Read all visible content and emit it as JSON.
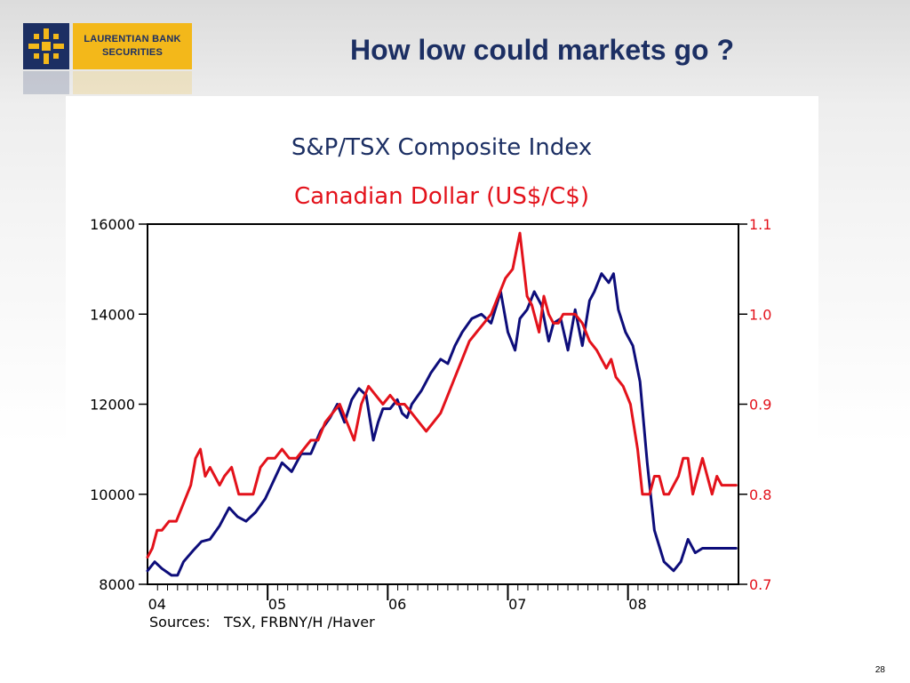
{
  "logo": {
    "line1": "LAURENTIAN BANK",
    "line2": "SECURITIES"
  },
  "slide": {
    "title": "How low could markets go ?",
    "page_number": "28"
  },
  "chart_data": {
    "type": "line",
    "title": "S&P/TSX Composite Index",
    "subtitle": "Canadian Dollar (US$/C$)",
    "x_ticks": [
      "04",
      "05",
      "06",
      "07",
      "08"
    ],
    "x_range": [
      2004.0,
      2008.92
    ],
    "grid": false,
    "left_axis": {
      "ylim": [
        8000,
        16000
      ],
      "ticks": [
        "16000",
        "14000",
        "12000",
        "10000",
        "8000"
      ]
    },
    "right_axis": {
      "ylim": [
        0.7,
        1.1
      ],
      "ticks": [
        "1.1",
        "1.0",
        "0.9",
        "0.8",
        "0.7"
      ]
    },
    "colors": {
      "tsx": "#0d0d7a",
      "cad": "#e3121b",
      "title": "#1c2f63",
      "subtitle": "#e3121b",
      "right_axis_text": "#e3121b"
    },
    "series": [
      {
        "axis": "left",
        "x": [
          2004.0,
          2004.06,
          2004.12,
          2004.2,
          2004.25,
          2004.3,
          2004.38,
          2004.45,
          2004.52,
          2004.6,
          2004.68,
          2004.75,
          2004.82,
          2004.9,
          2004.98,
          2005.05,
          2005.12,
          2005.2,
          2005.28,
          2005.36,
          2005.44,
          2005.52,
          2005.58,
          2005.64,
          2005.7,
          2005.76,
          2005.82,
          2005.88,
          2005.92,
          2005.96,
          2006.02,
          2006.08,
          2006.12,
          2006.16,
          2006.2,
          2006.28,
          2006.36,
          2006.44,
          2006.5,
          2006.56,
          2006.62,
          2006.7,
          2006.78,
          2006.86,
          2006.94,
          2007.0,
          2007.06,
          2007.1,
          2007.16,
          2007.22,
          2007.28,
          2007.34,
          2007.38,
          2007.44,
          2007.5,
          2007.56,
          2007.62,
          2007.68,
          2007.72,
          2007.78,
          2007.84,
          2007.88,
          2007.92,
          2007.98,
          2008.04,
          2008.1,
          2008.16,
          2008.22,
          2008.3,
          2008.38,
          2008.44,
          2008.5,
          2008.56,
          2008.62,
          2008.68,
          2008.74,
          2008.8,
          2008.86,
          2008.9
        ],
        "values": [
          8300,
          8500,
          8350,
          8200,
          8200,
          8500,
          8750,
          8950,
          9000,
          9300,
          9700,
          9500,
          9400,
          9600,
          9900,
          10300,
          10700,
          10500,
          10900,
          10900,
          11400,
          11700,
          12000,
          11600,
          12100,
          12350,
          12200,
          11200,
          11600,
          11900,
          11900,
          12100,
          11800,
          11700,
          12000,
          12300,
          12700,
          13000,
          12900,
          13300,
          13600,
          13900,
          14000,
          13800,
          14500,
          13600,
          13200,
          13900,
          14100,
          14500,
          14200,
          13400,
          13800,
          13900,
          13200,
          14100,
          13300,
          14300,
          14500,
          14900,
          14700,
          14900,
          14100,
          13600,
          13300,
          12500,
          10700,
          9200,
          8500,
          8300,
          8500,
          9000,
          8700,
          8800,
          8800,
          8800,
          8800,
          8800,
          8800
        ]
      },
      {
        "axis": "right",
        "x": [
          2004.0,
          2004.04,
          2004.08,
          2004.12,
          2004.18,
          2004.24,
          2004.3,
          2004.36,
          2004.4,
          2004.44,
          2004.48,
          2004.52,
          2004.56,
          2004.6,
          2004.64,
          2004.7,
          2004.76,
          2004.82,
          2004.88,
          2004.94,
          2005.0,
          2005.06,
          2005.12,
          2005.18,
          2005.24,
          2005.3,
          2005.36,
          2005.42,
          2005.48,
          2005.54,
          2005.6,
          2005.66,
          2005.72,
          2005.78,
          2005.84,
          2005.9,
          2005.96,
          2006.02,
          2006.08,
          2006.14,
          2006.2,
          2006.26,
          2006.32,
          2006.38,
          2006.44,
          2006.5,
          2006.56,
          2006.62,
          2006.68,
          2006.74,
          2006.8,
          2006.86,
          2006.92,
          2006.98,
          2007.04,
          2007.1,
          2007.16,
          2007.2,
          2007.26,
          2007.3,
          2007.34,
          2007.38,
          2007.42,
          2007.46,
          2007.5,
          2007.56,
          2007.62,
          2007.68,
          2007.74,
          2007.78,
          2007.82,
          2007.86,
          2007.9,
          2007.96,
          2008.02,
          2008.08,
          2008.12,
          2008.18,
          2008.22,
          2008.26,
          2008.3,
          2008.34,
          2008.38,
          2008.42,
          2008.46,
          2008.5,
          2008.54,
          2008.58,
          2008.62,
          2008.66,
          2008.7,
          2008.74,
          2008.78,
          2008.82,
          2008.86,
          2008.9
        ],
        "values": [
          0.73,
          0.74,
          0.76,
          0.76,
          0.77,
          0.77,
          0.79,
          0.81,
          0.84,
          0.85,
          0.82,
          0.83,
          0.82,
          0.81,
          0.82,
          0.83,
          0.8,
          0.8,
          0.8,
          0.83,
          0.84,
          0.84,
          0.85,
          0.84,
          0.84,
          0.85,
          0.86,
          0.86,
          0.88,
          0.89,
          0.9,
          0.88,
          0.86,
          0.9,
          0.92,
          0.91,
          0.9,
          0.91,
          0.9,
          0.9,
          0.89,
          0.88,
          0.87,
          0.88,
          0.89,
          0.91,
          0.93,
          0.95,
          0.97,
          0.98,
          0.99,
          1.0,
          1.02,
          1.04,
          1.05,
          1.09,
          1.02,
          1.01,
          0.98,
          1.02,
          1.0,
          0.99,
          0.99,
          1.0,
          1.0,
          1.0,
          0.99,
          0.97,
          0.96,
          0.95,
          0.94,
          0.95,
          0.93,
          0.92,
          0.9,
          0.85,
          0.8,
          0.8,
          0.82,
          0.82,
          0.8,
          0.8,
          0.81,
          0.82,
          0.84,
          0.84,
          0.8,
          0.82,
          0.84,
          0.82,
          0.8,
          0.82,
          0.81,
          0.81,
          0.81,
          0.81
        ]
      }
    ],
    "footnote": "Sources:   TSX, FRBNY/H /Haver"
  }
}
